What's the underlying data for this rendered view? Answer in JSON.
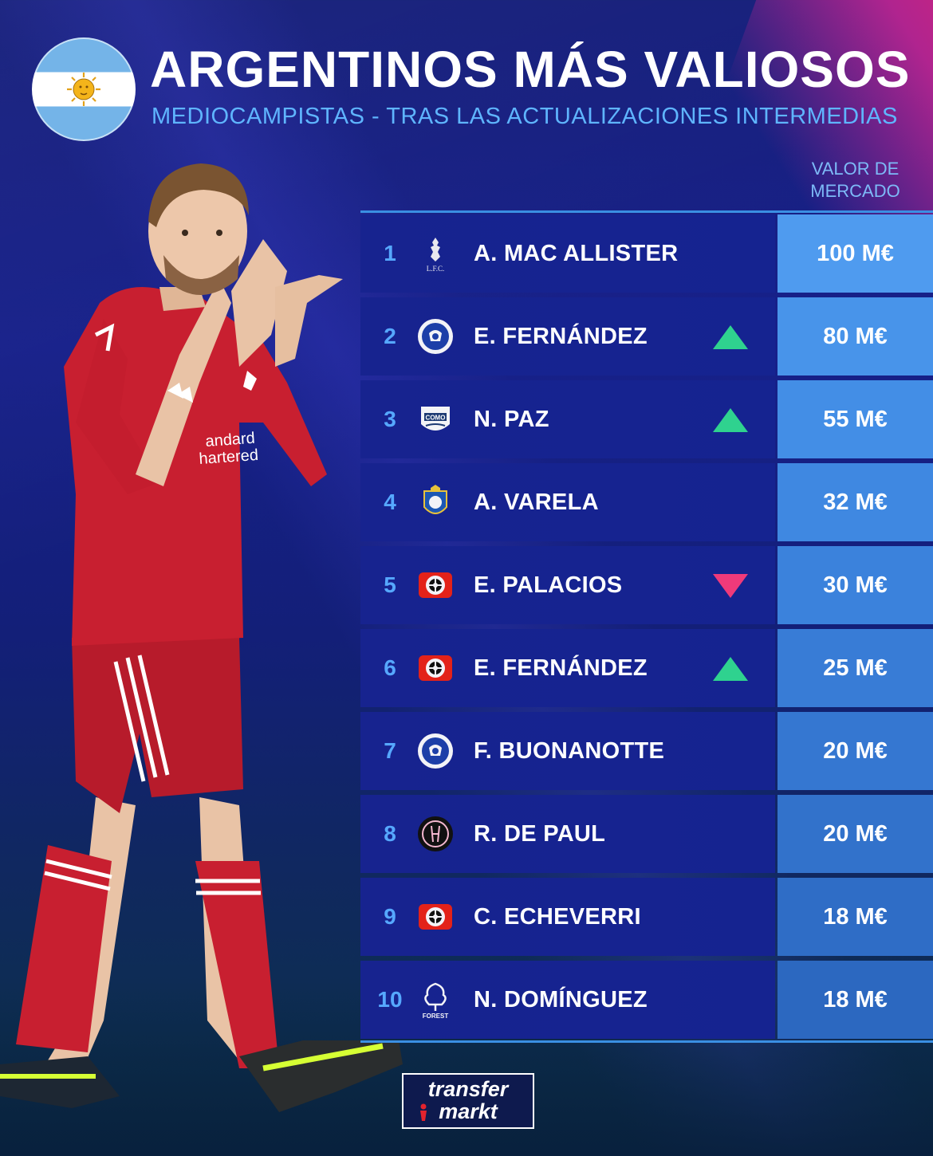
{
  "header": {
    "title": "ARGENTINOS MÁS VALIOSOS",
    "subtitle": "MEDIOCAMPISTAS - TRAS LAS ACTUALIZACIONES INTERMEDIAS",
    "column_label_line1": "VALOR DE",
    "column_label_line2": "MERCADO"
  },
  "rows": [
    {
      "rank": "1",
      "name": "A. MAC ALLISTER",
      "value": "100 M€",
      "club_icon": "liverpool-crest-icon",
      "trend": "none"
    },
    {
      "rank": "2",
      "name": "E. FERNÁNDEZ",
      "value": "80 M€",
      "club_icon": "chelsea-crest-icon",
      "trend": "up"
    },
    {
      "rank": "3",
      "name": "N. PAZ",
      "value": "55 M€",
      "club_icon": "como-crest-icon",
      "trend": "up"
    },
    {
      "rank": "4",
      "name": "A. VARELA",
      "value": "32 M€",
      "club_icon": "porto-crest-icon",
      "trend": "none"
    },
    {
      "rank": "5",
      "name": "E. PALACIOS",
      "value": "30 M€",
      "club_icon": "leverkusen-crest-icon",
      "trend": "down"
    },
    {
      "rank": "6",
      "name": "E. FERNÁNDEZ",
      "value": "25 M€",
      "club_icon": "leverkusen-crest-icon",
      "trend": "up"
    },
    {
      "rank": "7",
      "name": "F. BUONANOTTE",
      "value": "20 M€",
      "club_icon": "chelsea-crest-icon",
      "trend": "none"
    },
    {
      "rank": "8",
      "name": "R. DE PAUL",
      "value": "20 M€",
      "club_icon": "inter-miami-crest-icon",
      "trend": "none"
    },
    {
      "rank": "9",
      "name": "C. ECHEVERRI",
      "value": "18 M€",
      "club_icon": "leverkusen-crest-icon",
      "trend": "none"
    },
    {
      "rank": "10",
      "name": "N. DOMÍNGUEZ",
      "value": "18 M€",
      "club_icon": "nottingham-forest-crest-icon",
      "trend": "none"
    }
  ],
  "colors": {
    "up": "#2fd28f",
    "down": "#ef3a7a",
    "value_cells": [
      "#4f9bef",
      "#4894ea",
      "#438ee6",
      "#3f88e1",
      "#3b82dc",
      "#387cd6",
      "#3577d1",
      "#3272cb",
      "#2f6dc6",
      "#2c68c0"
    ]
  },
  "logo": {
    "line1": "transfer",
    "line2": "markt"
  }
}
